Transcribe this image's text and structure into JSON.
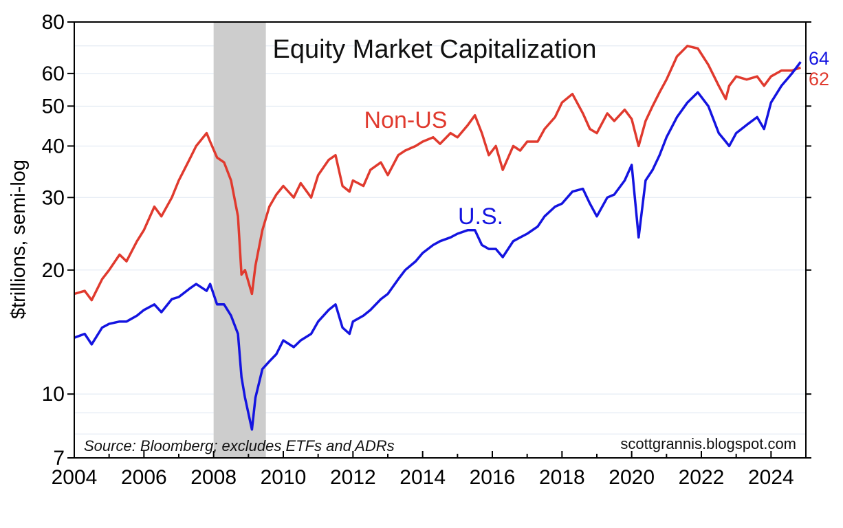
{
  "chart_data": {
    "type": "line",
    "title": "Equity Market Capitalization",
    "ylabel": "$trillions, semi-log",
    "xlabel": "",
    "y_scale": "log",
    "ylim": [
      7,
      80
    ],
    "xlim": [
      2004,
      2025
    ],
    "y_ticks": [
      7,
      10,
      20,
      30,
      40,
      50,
      60,
      80
    ],
    "x_ticks": [
      "2004",
      "2006",
      "2008",
      "2010",
      "2012",
      "2014",
      "2016",
      "2018",
      "2020",
      "2022",
      "2024"
    ],
    "grid": true,
    "recession_band": [
      2008.0,
      2009.5
    ],
    "annotations": {
      "source": "Source: Bloomberg; excludes ETFs and ADRs",
      "credit": "scottgrannis.blogspot.com"
    },
    "series": [
      {
        "name": "Non-US",
        "color": "#e03a2e",
        "end_label": "62",
        "x": [
          2004.0,
          2004.3,
          2004.5,
          2004.8,
          2005.0,
          2005.3,
          2005.5,
          2005.8,
          2006.0,
          2006.3,
          2006.5,
          2006.8,
          2007.0,
          2007.3,
          2007.5,
          2007.8,
          2007.9,
          2008.1,
          2008.3,
          2008.5,
          2008.7,
          2008.8,
          2008.9,
          2009.1,
          2009.2,
          2009.4,
          2009.6,
          2009.8,
          2010.0,
          2010.3,
          2010.5,
          2010.8,
          2011.0,
          2011.3,
          2011.5,
          2011.7,
          2011.9,
          2012.0,
          2012.3,
          2012.5,
          2012.8,
          2013.0,
          2013.3,
          2013.5,
          2013.8,
          2014.0,
          2014.3,
          2014.5,
          2014.8,
          2015.0,
          2015.3,
          2015.5,
          2015.7,
          2015.9,
          2016.1,
          2016.3,
          2016.6,
          2016.8,
          2017.0,
          2017.3,
          2017.5,
          2017.8,
          2018.0,
          2018.3,
          2018.6,
          2018.8,
          2019.0,
          2019.3,
          2019.5,
          2019.8,
          2020.0,
          2020.2,
          2020.4,
          2020.6,
          2020.8,
          2021.0,
          2021.3,
          2021.6,
          2021.9,
          2022.2,
          2022.5,
          2022.7,
          2022.8,
          2023.0,
          2023.3,
          2023.6,
          2023.8,
          2024.0,
          2024.3,
          2024.6,
          2024.85
        ],
        "values": [
          17.5,
          17.8,
          16.9,
          19.0,
          20.0,
          21.8,
          21.0,
          23.5,
          25.0,
          28.5,
          27.0,
          30.0,
          33.0,
          37.0,
          40.0,
          43.0,
          41.0,
          37.5,
          36.5,
          33.0,
          27.0,
          19.5,
          20.0,
          17.5,
          20.5,
          25.0,
          28.5,
          30.5,
          32.0,
          30.0,
          32.5,
          30.0,
          34.0,
          37.0,
          38.0,
          32.0,
          31.0,
          33.0,
          32.0,
          35.0,
          36.5,
          34.0,
          38.0,
          39.0,
          40.0,
          41.0,
          42.0,
          40.5,
          43.0,
          42.0,
          45.0,
          47.5,
          43.0,
          38.0,
          40.0,
          35.0,
          40.0,
          39.0,
          41.0,
          41.0,
          44.0,
          47.0,
          51.0,
          53.5,
          48.0,
          44.0,
          43.0,
          48.0,
          46.0,
          49.0,
          46.5,
          40.0,
          46.0,
          50.0,
          54.0,
          58.0,
          66.0,
          70.0,
          69.0,
          63.0,
          56.0,
          52.0,
          56.0,
          59.0,
          58.0,
          59.0,
          56.0,
          59.0,
          61.0,
          61.0,
          62.0
        ]
      },
      {
        "name": "U.S.",
        "color": "#1414e0",
        "end_label": "64",
        "x": [
          2004.0,
          2004.3,
          2004.5,
          2004.8,
          2005.0,
          2005.3,
          2005.5,
          2005.8,
          2006.0,
          2006.3,
          2006.5,
          2006.8,
          2007.0,
          2007.3,
          2007.5,
          2007.8,
          2007.9,
          2008.1,
          2008.3,
          2008.5,
          2008.7,
          2008.8,
          2008.9,
          2009.1,
          2009.2,
          2009.4,
          2009.6,
          2009.8,
          2010.0,
          2010.3,
          2010.5,
          2010.8,
          2011.0,
          2011.3,
          2011.5,
          2011.7,
          2011.9,
          2012.0,
          2012.3,
          2012.5,
          2012.8,
          2013.0,
          2013.3,
          2013.5,
          2013.8,
          2014.0,
          2014.3,
          2014.5,
          2014.8,
          2015.0,
          2015.3,
          2015.5,
          2015.7,
          2015.9,
          2016.1,
          2016.3,
          2016.6,
          2016.8,
          2017.0,
          2017.3,
          2017.5,
          2017.8,
          2018.0,
          2018.3,
          2018.6,
          2018.8,
          2019.0,
          2019.3,
          2019.5,
          2019.8,
          2020.0,
          2020.2,
          2020.4,
          2020.6,
          2020.8,
          2021.0,
          2021.3,
          2021.6,
          2021.9,
          2022.2,
          2022.5,
          2022.7,
          2022.8,
          2023.0,
          2023.3,
          2023.6,
          2023.8,
          2024.0,
          2024.3,
          2024.6,
          2024.85
        ],
        "values": [
          13.7,
          14.0,
          13.2,
          14.5,
          14.8,
          15.0,
          15.0,
          15.5,
          16.0,
          16.5,
          15.8,
          17.0,
          17.2,
          18.0,
          18.5,
          17.8,
          18.5,
          16.5,
          16.5,
          15.5,
          14.0,
          11.0,
          9.8,
          8.2,
          9.8,
          11.5,
          12.0,
          12.5,
          13.5,
          13.0,
          13.5,
          14.0,
          15.0,
          16.0,
          16.5,
          14.5,
          14.0,
          15.0,
          15.5,
          16.0,
          17.0,
          17.5,
          19.0,
          20.0,
          21.0,
          22.0,
          23.0,
          23.5,
          24.0,
          24.5,
          25.0,
          25.0,
          23.0,
          22.5,
          22.5,
          21.5,
          23.5,
          24.0,
          24.5,
          25.5,
          27.0,
          28.5,
          29.0,
          31.0,
          31.5,
          29.0,
          27.0,
          30.0,
          30.5,
          33.0,
          36.0,
          24.0,
          33.0,
          35.0,
          38.0,
          42.0,
          47.0,
          51.0,
          54.0,
          50.0,
          43.0,
          41.0,
          40.0,
          43.0,
          45.0,
          47.0,
          44.0,
          51.0,
          56.0,
          60.0,
          64.0
        ]
      }
    ]
  }
}
